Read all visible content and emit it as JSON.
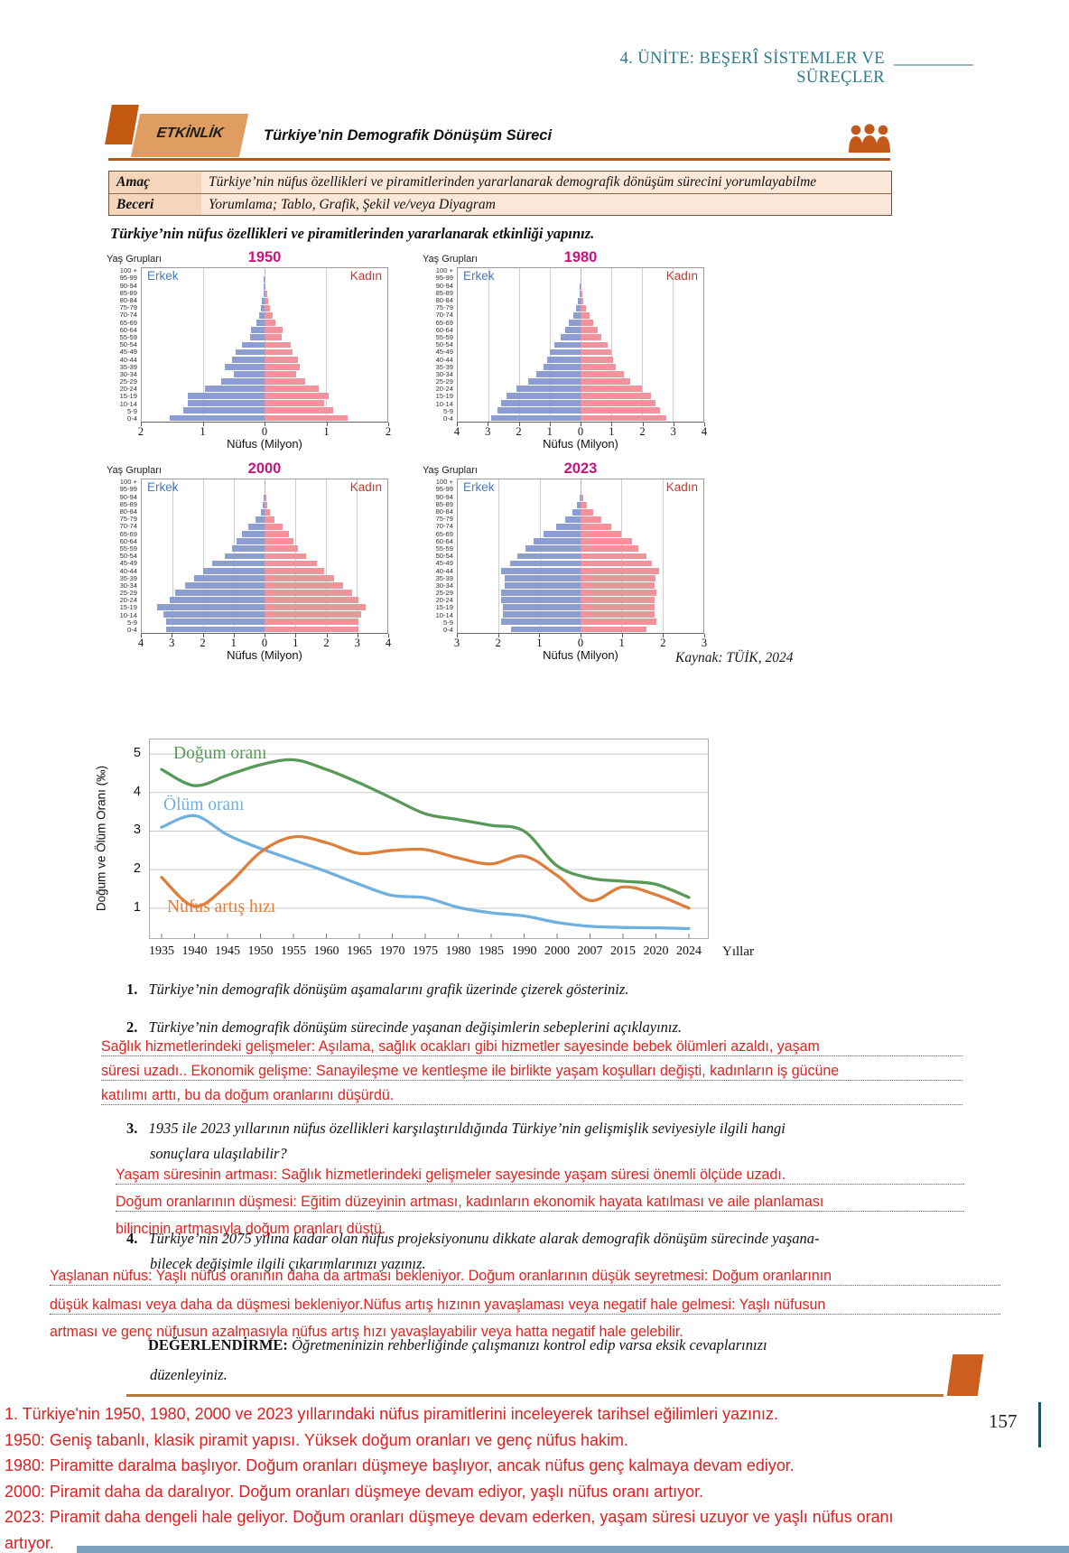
{
  "page": {
    "unit_header": "4. ÜNİTE: BEŞERÎ SİSTEMLER VE SÜREÇLER",
    "page_number": "157"
  },
  "activity": {
    "badge": "ETKİNLİK",
    "title": "Türkiye’nin Demografik Dönüşüm Süreci",
    "info_rows": [
      {
        "label": "Amaç",
        "value": "Türkiye’nin nüfus özellikleri ve piramitlerinden yararlanarak demografik dönüşüm sürecini yorumlayabilme"
      },
      {
        "label": "Beceri",
        "value": "Yorumlama; Tablo, Grafik, Şekil ve/veya Diyagram"
      }
    ],
    "instruction": "Türkiye’nin nüfus özellikleri ve piramitlerinden yararlanarak etkinliği yapınız.",
    "source": "Kaynak: TÜİK, 2024"
  },
  "colors": {
    "accent_orange": "#c45911",
    "badge_fill": "#df9d61",
    "header_teal": "#2e7a8c",
    "title_magenta": "#c4157c",
    "male_bar": "#8b9dd1",
    "female_bar": "#f2929b",
    "male_label": "#4d79b8",
    "female_label": "#c03a2f",
    "answer_red": "#e02420",
    "rule_brown": "#b5763b",
    "bottom_bar_blue": "#7ba3c0"
  },
  "chart_data": [
    {
      "type": "bar",
      "variant": "population-pyramid",
      "title": "1950",
      "ylabel": "Yaş Grupları",
      "xlabel": "Nüfus (Milyon)",
      "xlim": 2,
      "xticks": [
        "2",
        "1",
        "0",
        "1",
        "2"
      ],
      "age_groups": [
        "100 +",
        "95-99",
        "90-94",
        "85-89",
        "80-84",
        "75-79",
        "70-74",
        "65-69",
        "60-64",
        "55-59",
        "50-54",
        "45-49",
        "40-44",
        "35-39",
        "30-34",
        "25-29",
        "20-24",
        "15-19",
        "10-14",
        "5-9",
        "0-4"
      ],
      "series": [
        {
          "name": "Erkek",
          "values": [
            0.005,
            0.01,
            0.01,
            0.02,
            0.04,
            0.06,
            0.09,
            0.13,
            0.22,
            0.23,
            0.37,
            0.47,
            0.53,
            0.65,
            0.5,
            0.7,
            0.97,
            1.25,
            1.25,
            1.32,
            1.55
          ]
        },
        {
          "name": "Kadın",
          "values": [
            0.01,
            0.01,
            0.02,
            0.04,
            0.06,
            0.09,
            0.13,
            0.18,
            0.3,
            0.28,
            0.42,
            0.45,
            0.55,
            0.58,
            0.52,
            0.66,
            0.88,
            1.05,
            0.97,
            1.12,
            1.35
          ]
        }
      ]
    },
    {
      "type": "bar",
      "variant": "population-pyramid",
      "title": "1980",
      "ylabel": "Yaş Grupları",
      "xlabel": "Nüfus (Milyon)",
      "xlim": 4,
      "xticks": [
        "4",
        "3",
        "2",
        "1",
        "0",
        "1",
        "2",
        "3",
        "4"
      ],
      "age_groups": [
        "100 +",
        "95-99",
        "90-94",
        "85-89",
        "80-84",
        "75-79",
        "70-74",
        "65-69",
        "60-64",
        "55-59",
        "50-54",
        "45-49",
        "40-44",
        "35-39",
        "30-34",
        "25-29",
        "20-24",
        "15-19",
        "10-14",
        "5-9",
        "0-4"
      ],
      "series": [
        {
          "name": "Erkek",
          "values": [
            0.005,
            0.01,
            0.02,
            0.04,
            0.08,
            0.14,
            0.25,
            0.38,
            0.5,
            0.65,
            0.85,
            1.0,
            1.1,
            1.2,
            1.45,
            1.7,
            2.1,
            2.4,
            2.6,
            2.7,
            2.9
          ]
        },
        {
          "name": "Kadın",
          "values": [
            0.01,
            0.01,
            0.03,
            0.06,
            0.1,
            0.17,
            0.3,
            0.42,
            0.55,
            0.68,
            0.88,
            1.0,
            1.05,
            1.15,
            1.4,
            1.62,
            2.0,
            2.28,
            2.45,
            2.58,
            2.78
          ]
        }
      ]
    },
    {
      "type": "bar",
      "variant": "population-pyramid",
      "title": "2000",
      "ylabel": "Yaş Grupları",
      "xlabel": "Nüfus (Milyon)",
      "xlim": 4,
      "xticks": [
        "4",
        "3",
        "2",
        "1",
        "0",
        "1",
        "2",
        "3",
        "4"
      ],
      "age_groups": [
        "100 +",
        "95-99",
        "90-94",
        "85-89",
        "80-84",
        "75-79",
        "70-74",
        "65-69",
        "60-64",
        "55-59",
        "50-54",
        "45-49",
        "40-44",
        "35-39",
        "30-34",
        "25-29",
        "20-24",
        "15-19",
        "10-14",
        "5-9",
        "0-4"
      ],
      "series": [
        {
          "name": "Erkek",
          "values": [
            0.01,
            0.01,
            0.03,
            0.06,
            0.13,
            0.28,
            0.52,
            0.75,
            0.9,
            1.05,
            1.3,
            1.7,
            2.0,
            2.3,
            2.6,
            2.9,
            3.1,
            3.5,
            3.3,
            3.2,
            3.2
          ]
        },
        {
          "name": "Kadın",
          "values": [
            0.01,
            0.02,
            0.05,
            0.09,
            0.17,
            0.33,
            0.58,
            0.8,
            0.95,
            1.1,
            1.35,
            1.7,
            1.95,
            2.25,
            2.55,
            2.85,
            3.05,
            3.3,
            3.15,
            3.05,
            3.05
          ]
        }
      ]
    },
    {
      "type": "bar",
      "variant": "population-pyramid",
      "title": "2023",
      "ylabel": "Yaş Grupları",
      "xlabel": "Nüfus (Milyon)",
      "xlim": 3,
      "xticks": [
        "3",
        "2",
        "1",
        "0",
        "1",
        "2",
        "3"
      ],
      "age_groups": [
        "100 +",
        "95-99",
        "90-94",
        "85-89",
        "80-84",
        "75-79",
        "70-74",
        "65-69",
        "60-64",
        "55-59",
        "50-54",
        "45-49",
        "40-44",
        "35-39",
        "30-34",
        "25-29",
        "20-24",
        "15-19",
        "10-14",
        "5-9",
        "0-4"
      ],
      "series": [
        {
          "name": "Erkek",
          "values": [
            0.005,
            0.01,
            0.03,
            0.09,
            0.2,
            0.37,
            0.6,
            0.9,
            1.15,
            1.35,
            1.55,
            1.72,
            1.95,
            1.85,
            1.85,
            1.95,
            1.95,
            1.9,
            1.9,
            1.95,
            1.7
          ]
        },
        {
          "name": "Kadın",
          "values": [
            0.01,
            0.02,
            0.07,
            0.15,
            0.3,
            0.5,
            0.75,
            1.0,
            1.25,
            1.42,
            1.62,
            1.75,
            1.92,
            1.82,
            1.8,
            1.85,
            1.8,
            1.8,
            1.8,
            1.85,
            1.6
          ]
        }
      ]
    },
    {
      "type": "line",
      "title": "",
      "ylabel": "Doğum ve Ölüm Oranı (‰)",
      "xlabel": "Yıllar",
      "x_ticks": [
        "1935",
        "1940",
        "1945",
        "1950",
        "1955",
        "1960",
        "1965",
        "1970",
        "1975",
        "1980",
        "1985",
        "1990",
        "2000",
        "2007",
        "2015",
        "2020",
        "2024"
      ],
      "yticks": [
        1,
        2,
        3,
        4,
        5
      ],
      "ylim": [
        0.2,
        5.4
      ],
      "grid": "horizontal",
      "legend_position": "inside-left",
      "series": [
        {
          "name": "Doğum oranı",
          "color": "#579a57",
          "values": [
            4.6,
            4.18,
            4.45,
            4.72,
            4.85,
            4.6,
            4.25,
            3.85,
            3.45,
            3.3,
            3.15,
            3.0,
            2.1,
            1.78,
            1.7,
            1.62,
            1.28
          ]
        },
        {
          "name": "Ölüm oranı",
          "color": "#6fb0de",
          "values": [
            3.1,
            3.4,
            2.9,
            2.55,
            2.25,
            1.95,
            1.62,
            1.33,
            1.27,
            1.02,
            0.88,
            0.8,
            0.63,
            0.53,
            0.5,
            0.49,
            0.47
          ]
        },
        {
          "name": "Nüfus artış hızı",
          "color": "#dd7e3d",
          "values": [
            1.8,
            1.05,
            1.6,
            2.45,
            2.85,
            2.7,
            2.42,
            2.5,
            2.52,
            2.3,
            2.15,
            2.35,
            1.85,
            1.2,
            1.55,
            1.35,
            1.0
          ]
        }
      ]
    }
  ],
  "questions": [
    {
      "number": "1.",
      "lines": [
        "Türkiye’nin demografik dönüşüm aşamalarını grafik üzerinde çizerek gösteriniz."
      ]
    },
    {
      "number": "2.",
      "lines": [
        "Türkiye’nin demografik dönüşüm sürecinde yaşanan değişimlerin sebeplerini açıklayınız."
      ]
    },
    {
      "number": "3.",
      "lines": [
        "1935 ile 2023  yıllarının nüfus özellikleri karşılaştırıldığında Türkiye’nin gelişmişlik seviyesiyle ilgili hangi",
        "sonuçlara ulaşılabilir?"
      ]
    },
    {
      "number": "4.",
      "lines": [
        "Türkiye’nin 2075 yılına kadar olan nüfus projeksiyonunu dikkate alarak demografik dönüşüm sürecinde yaşana-",
        "bilecek değişimle ilgili çıkarımlarınızı yazınız."
      ]
    }
  ],
  "answers": {
    "q2": [
      "Sağlık hizmetlerindeki gelişmeler: Aşılama, sağlık ocakları gibi hizmetler sayesinde bebek ölümleri azaldı, yaşam",
      "süresi uzadı.. Ekonomik gelişme: Sanayileşme ve kentleşme ile birlikte yaşam koşulları değişti, kadınların iş gücüne",
      "katılımı arttı, bu da doğum oranlarını düşürdü."
    ],
    "q3": [
      "Yaşam süresinin artması: Sağlık hizmetlerindeki gelişmeler sayesinde yaşam süresi önemli ölçüde uzadı.",
      "Doğum oranlarının düşmesi: Eğitim düzeyinin artması, kadınların ekonomik hayata katılması ve aile planlaması",
      "bilincinin artmasıyla doğum oranları düştü."
    ],
    "q4": [
      "Yaşlanan nüfus: Yaşlı nüfus oranının daha da artması bekleniyor. Doğum oranlarının düşük seyretmesi: Doğum oranlarının",
      "düşük kalması veya daha da düşmesi bekleniyor.Nüfus artış hızının yavaşlaması veya negatif hale gelmesi: Yaşlı nüfusun",
      "artması ve genç nüfusun azalmasıyla nüfus artış hızı yavaşlayabilir veya hatta negatif hale gelebilir."
    ]
  },
  "evaluation": {
    "label": "DEĞERLENDİRME:",
    "lines": [
      "Öğretmeninizin rehberliğinde çalışmanızı kontrol edip varsa eksik cevaplarınızı",
      "düzenleyiniz."
    ]
  },
  "bottom_notes": [
    "1. Türkiye'nin 1950, 1980, 2000 ve 2023 yıllarındaki nüfus piramitlerini inceleyerek tarihsel eğilimleri yazınız.",
    "1950: Geniş tabanlı, klasik piramit yapısı. Yüksek doğum oranları ve genç nüfus hakim.",
    "1980: Piramitte daralma başlıyor. Doğum oranları düşmeye başlıyor, ancak nüfus genç kalmaya devam ediyor.",
    "2000: Piramit daha da daralıyor. Doğum oranları düşmeye devam ediyor, yaşlı nüfus oranı artıyor.",
    "2023: Piramit daha dengeli hale geliyor. Doğum oranları düşmeye devam ederken, yaşam süresi uzuyor ve yaşlı nüfus oranı",
    "artıyor."
  ]
}
